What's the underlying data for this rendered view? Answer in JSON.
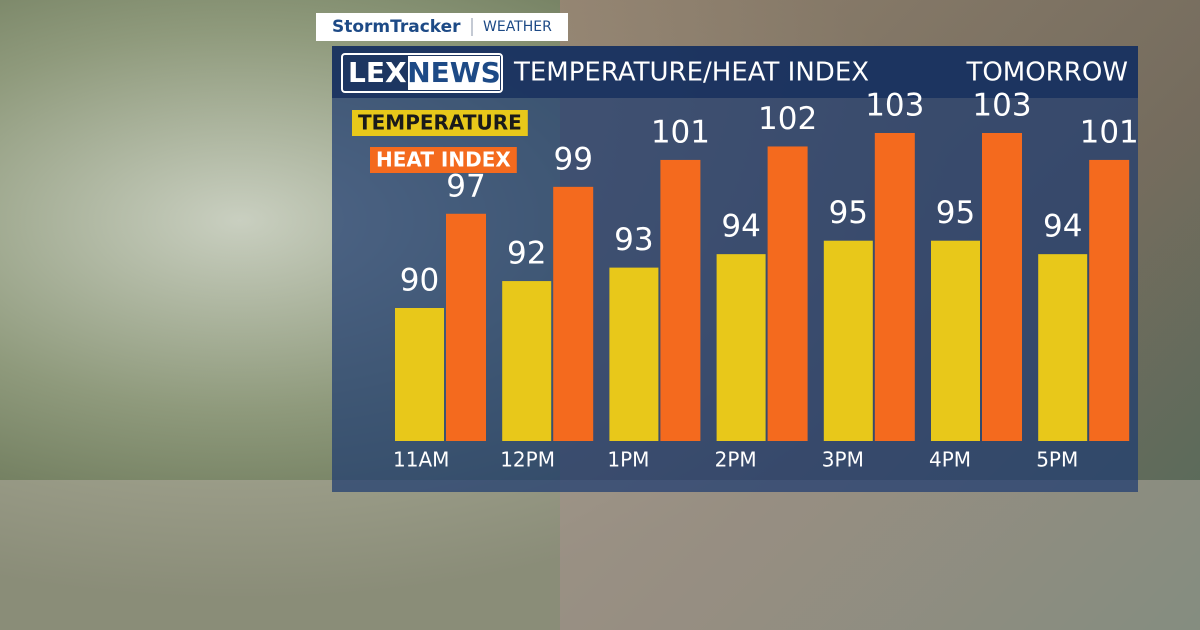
{
  "brand": {
    "show": "StormTracker",
    "section": "WEATHER",
    "logo_left": "LEX",
    "logo_right": "NEWS"
  },
  "chart_data": {
    "type": "bar",
    "title": "TEMPERATURE/HEAT INDEX",
    "subtitle": "TOMORROW",
    "categories": [
      "11AM",
      "12PM",
      "1PM",
      "2PM",
      "3PM",
      "4PM",
      "5PM"
    ],
    "series": [
      {
        "name": "TEMPERATURE",
        "color": "#e8c81a",
        "values": [
          90,
          92,
          93,
          94,
          95,
          95,
          94
        ]
      },
      {
        "name": "HEAT INDEX",
        "color": "#f46a1e",
        "values": [
          97,
          99,
          101,
          102,
          103,
          103,
          101
        ]
      }
    ]
  }
}
